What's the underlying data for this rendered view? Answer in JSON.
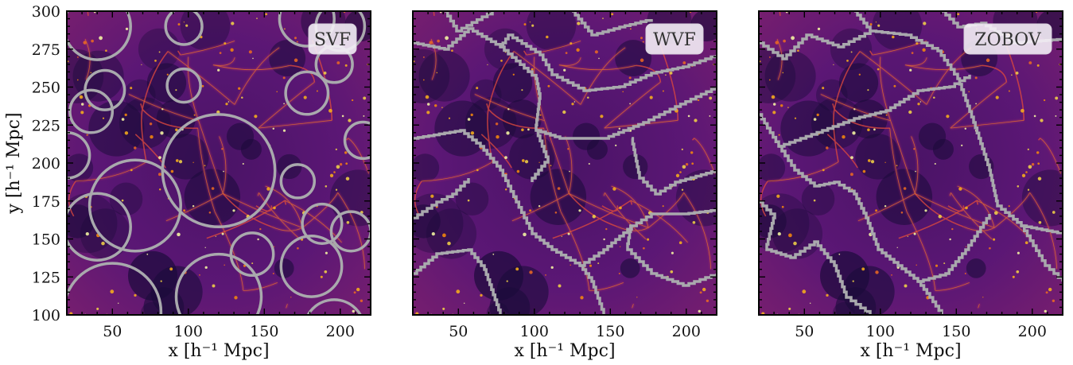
{
  "chart_data": [
    {
      "type": "heatmap",
      "label": "SVF",
      "xlabel": "x  [h⁻¹ Mpc]",
      "ylabel": "y  [h⁻¹ Mpc]",
      "xlim": [
        20,
        220
      ],
      "ylim": [
        100,
        300
      ],
      "xticks": [
        50,
        100,
        150,
        200
      ],
      "yticks": [
        100,
        125,
        150,
        175,
        200,
        225,
        250,
        275,
        300
      ],
      "overlay": "circles",
      "circles": [
        {
          "x": 40,
          "y": 290,
          "r": 22
        },
        {
          "x": 97,
          "y": 290,
          "r": 12
        },
        {
          "x": 97,
          "y": 251,
          "r": 11
        },
        {
          "x": 45,
          "y": 248,
          "r": 13
        },
        {
          "x": 36,
          "y": 234,
          "r": 14
        },
        {
          "x": 178,
          "y": 295,
          "r": 18
        },
        {
          "x": 200,
          "y": 290,
          "r": 16
        },
        {
          "x": 196,
          "y": 265,
          "r": 12
        },
        {
          "x": 178,
          "y": 246,
          "r": 14
        },
        {
          "x": 120,
          "y": 195,
          "r": 37
        },
        {
          "x": 20,
          "y": 205,
          "r": 15
        },
        {
          "x": 215,
          "y": 215,
          "r": 12
        },
        {
          "x": 65,
          "y": 172,
          "r": 30
        },
        {
          "x": 40,
          "y": 158,
          "r": 22
        },
        {
          "x": 172,
          "y": 188,
          "r": 11
        },
        {
          "x": 188,
          "y": 160,
          "r": 13
        },
        {
          "x": 207,
          "y": 155,
          "r": 13
        },
        {
          "x": 142,
          "y": 140,
          "r": 14
        },
        {
          "x": 181,
          "y": 132,
          "r": 20
        },
        {
          "x": 120,
          "y": 112,
          "r": 28
        },
        {
          "x": 50,
          "y": 102,
          "r": 32
        },
        {
          "x": 196,
          "y": 90,
          "r": 20
        }
      ]
    },
    {
      "type": "heatmap",
      "label": "WVF",
      "xlabel": "x  [h⁻¹ Mpc]",
      "xlim": [
        20,
        220
      ],
      "ylim": [
        100,
        300
      ],
      "xticks": [
        50,
        100,
        150,
        200
      ],
      "overlay": "boundaries"
    },
    {
      "type": "heatmap",
      "label": "ZOBOV",
      "xlabel": "x  [h⁻¹ Mpc]",
      "xlim": [
        20,
        220
      ],
      "ylim": [
        100,
        300
      ],
      "xticks": [
        50,
        100,
        150,
        200
      ],
      "overlay": "boundaries"
    }
  ],
  "colors": {
    "colormap": "inferno",
    "overlay": "#a9a9ad",
    "legend_box": "#f4eef6"
  }
}
